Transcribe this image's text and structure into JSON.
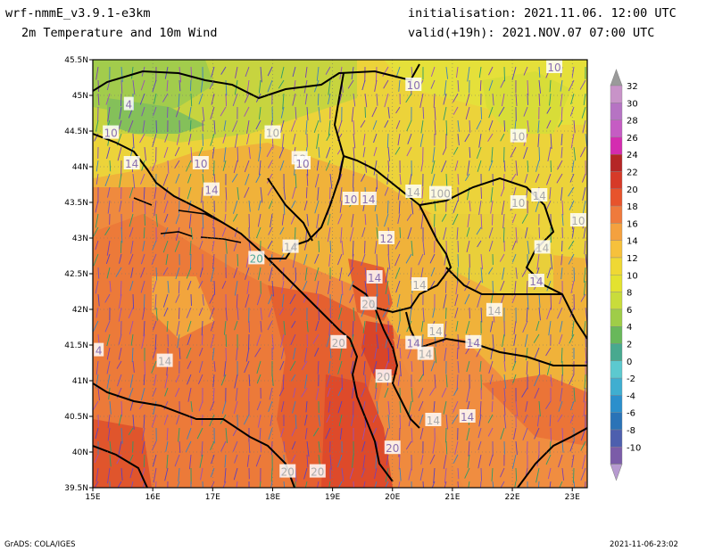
{
  "header": {
    "model": "wrf-nmmE_v3.9.1-e3km",
    "field": "2m Temperature and 10m Wind",
    "init": "initialisation: 2021.11.06. 12:00 UTC",
    "valid": "valid(+19h): 2021.NOV.07 07:00 UTC"
  },
  "footer": {
    "credit": "GrADS: COLA/IGES",
    "timestamp": "2021-11-06-23:02"
  },
  "axes": {
    "lon_labels": [
      "15E",
      "16E",
      "17E",
      "18E",
      "19E",
      "20E",
      "21E",
      "22E",
      "23E"
    ],
    "lat_labels": [
      "45.5N",
      "45N",
      "44.5N",
      "44N",
      "43.5N",
      "43N",
      "42.5N",
      "42N",
      "41.5N",
      "41N",
      "40.5N",
      "40N",
      "39.5N"
    ]
  },
  "colorbar": {
    "levels": [
      {
        "label": "32",
        "color": "#c893c8"
      },
      {
        "label": "30",
        "color": "#b673c3"
      },
      {
        "label": "28",
        "color": "#c55cc3"
      },
      {
        "label": "26",
        "color": "#d42cb0"
      },
      {
        "label": "24",
        "color": "#b52626"
      },
      {
        "label": "22",
        "color": "#d63a28"
      },
      {
        "label": "20",
        "color": "#e7532c"
      },
      {
        "label": "18",
        "color": "#ef7a3c"
      },
      {
        "label": "16",
        "color": "#f4a13f"
      },
      {
        "label": "14",
        "color": "#f6c13c"
      },
      {
        "label": "12",
        "color": "#efd834"
      },
      {
        "label": "10",
        "color": "#e3e22f"
      },
      {
        "label": "8",
        "color": "#c9dc3b"
      },
      {
        "label": "6",
        "color": "#9fcd48"
      },
      {
        "label": "4",
        "color": "#68b85a"
      },
      {
        "label": "2",
        "color": "#48a98f"
      },
      {
        "label": "0",
        "color": "#5cc9cf"
      },
      {
        "label": "-2",
        "color": "#3faed0"
      },
      {
        "label": "-4",
        "color": "#2b8fcc"
      },
      {
        "label": "-6",
        "color": "#2a73b7"
      },
      {
        "label": "-8",
        "color": "#4d5fae"
      },
      {
        "label": "-10",
        "color": "#7b5ca8"
      }
    ],
    "top_arrow_color": "#9a9a9a",
    "bottom_arrow_color": "#b79ad0"
  },
  "contour_labels": [
    {
      "text": "10",
      "lon": 22.7,
      "lat": 45.4,
      "color": "#8a6fb0"
    },
    {
      "text": "10",
      "lon": 20.35,
      "lat": 45.15,
      "color": "#8a6fb0"
    },
    {
      "text": "4",
      "lon": 15.6,
      "lat": 44.88,
      "color": "#8a6fb0"
    },
    {
      "text": "10",
      "lon": 15.3,
      "lat": 44.48,
      "color": "#8a6fb0"
    },
    {
      "text": "10",
      "lon": 18.0,
      "lat": 44.48,
      "color": "#aaaaaa"
    },
    {
      "text": "10",
      "lon": 22.1,
      "lat": 44.43,
      "color": "#aaaaaa"
    },
    {
      "text": "12",
      "lon": 18.45,
      "lat": 44.12,
      "color": "#aaaaaa"
    },
    {
      "text": "10",
      "lon": 18.5,
      "lat": 44.05,
      "color": "#8a6fb0"
    },
    {
      "text": "14",
      "lon": 15.65,
      "lat": 44.05,
      "color": "#8a6fb0"
    },
    {
      "text": "10",
      "lon": 16.8,
      "lat": 44.05,
      "color": "#8a6fb0"
    },
    {
      "text": "14",
      "lon": 16.98,
      "lat": 43.68,
      "color": "#8a6fb0"
    },
    {
      "text": "10",
      "lon": 19.3,
      "lat": 43.55,
      "color": "#8a6fb0"
    },
    {
      "text": "14",
      "lon": 19.6,
      "lat": 43.55,
      "color": "#8a6fb0"
    },
    {
      "text": "14",
      "lon": 20.35,
      "lat": 43.65,
      "color": "#aaaaaa"
    },
    {
      "text": "100",
      "lon": 20.8,
      "lat": 43.63,
      "color": "#aaaaaa"
    },
    {
      "text": "10",
      "lon": 22.1,
      "lat": 43.5,
      "color": "#aaaaaa"
    },
    {
      "text": "14",
      "lon": 22.45,
      "lat": 43.6,
      "color": "#aaaaaa"
    },
    {
      "text": "10",
      "lon": 23.1,
      "lat": 43.25,
      "color": "#aaaaaa"
    },
    {
      "text": "12",
      "lon": 19.9,
      "lat": 43.0,
      "color": "#8a6fb0"
    },
    {
      "text": "14",
      "lon": 18.3,
      "lat": 42.88,
      "color": "#aaaaaa"
    },
    {
      "text": "14",
      "lon": 22.5,
      "lat": 42.87,
      "color": "#aaaaaa"
    },
    {
      "text": "20",
      "lon": 17.73,
      "lat": 42.72,
      "color": "#4fa89a"
    },
    {
      "text": "14",
      "lon": 19.7,
      "lat": 42.45,
      "color": "#8a6fb0"
    },
    {
      "text": "14",
      "lon": 20.45,
      "lat": 42.35,
      "color": "#aaaaaa"
    },
    {
      "text": "14",
      "lon": 22.4,
      "lat": 42.4,
      "color": "#8a6fb0"
    },
    {
      "text": "20",
      "lon": 19.6,
      "lat": 42.08,
      "color": "#aaaaaa"
    },
    {
      "text": "14",
      "lon": 21.7,
      "lat": 41.99,
      "color": "#aaaaaa"
    },
    {
      "text": "14",
      "lon": 20.72,
      "lat": 41.7,
      "color": "#aaaaaa"
    },
    {
      "text": "14",
      "lon": 20.35,
      "lat": 41.53,
      "color": "#8a6fb0"
    },
    {
      "text": "14",
      "lon": 21.35,
      "lat": 41.54,
      "color": "#8a6fb0"
    },
    {
      "text": "20",
      "lon": 19.1,
      "lat": 41.54,
      "color": "#aaaaaa"
    },
    {
      "text": "14",
      "lon": 20.55,
      "lat": 41.38,
      "color": "#aaaaaa"
    },
    {
      "text": "4",
      "lon": 15.1,
      "lat": 41.43,
      "color": "#8a6fb0"
    },
    {
      "text": "14",
      "lon": 16.2,
      "lat": 41.28,
      "color": "#aaaaaa"
    },
    {
      "text": "20",
      "lon": 19.85,
      "lat": 41.06,
      "color": "#aaaaaa"
    },
    {
      "text": "14",
      "lon": 21.25,
      "lat": 40.5,
      "color": "#8a6fb0"
    },
    {
      "text": "14",
      "lon": 20.68,
      "lat": 40.45,
      "color": "#aaaaaa"
    },
    {
      "text": "20",
      "lon": 20.0,
      "lat": 40.06,
      "color": "#8a6fb0"
    },
    {
      "text": "20",
      "lon": 18.25,
      "lat": 39.73,
      "color": "#aaaaaa"
    },
    {
      "text": "20",
      "lon": 18.75,
      "lat": 39.73,
      "color": "#aaaaaa"
    }
  ]
}
